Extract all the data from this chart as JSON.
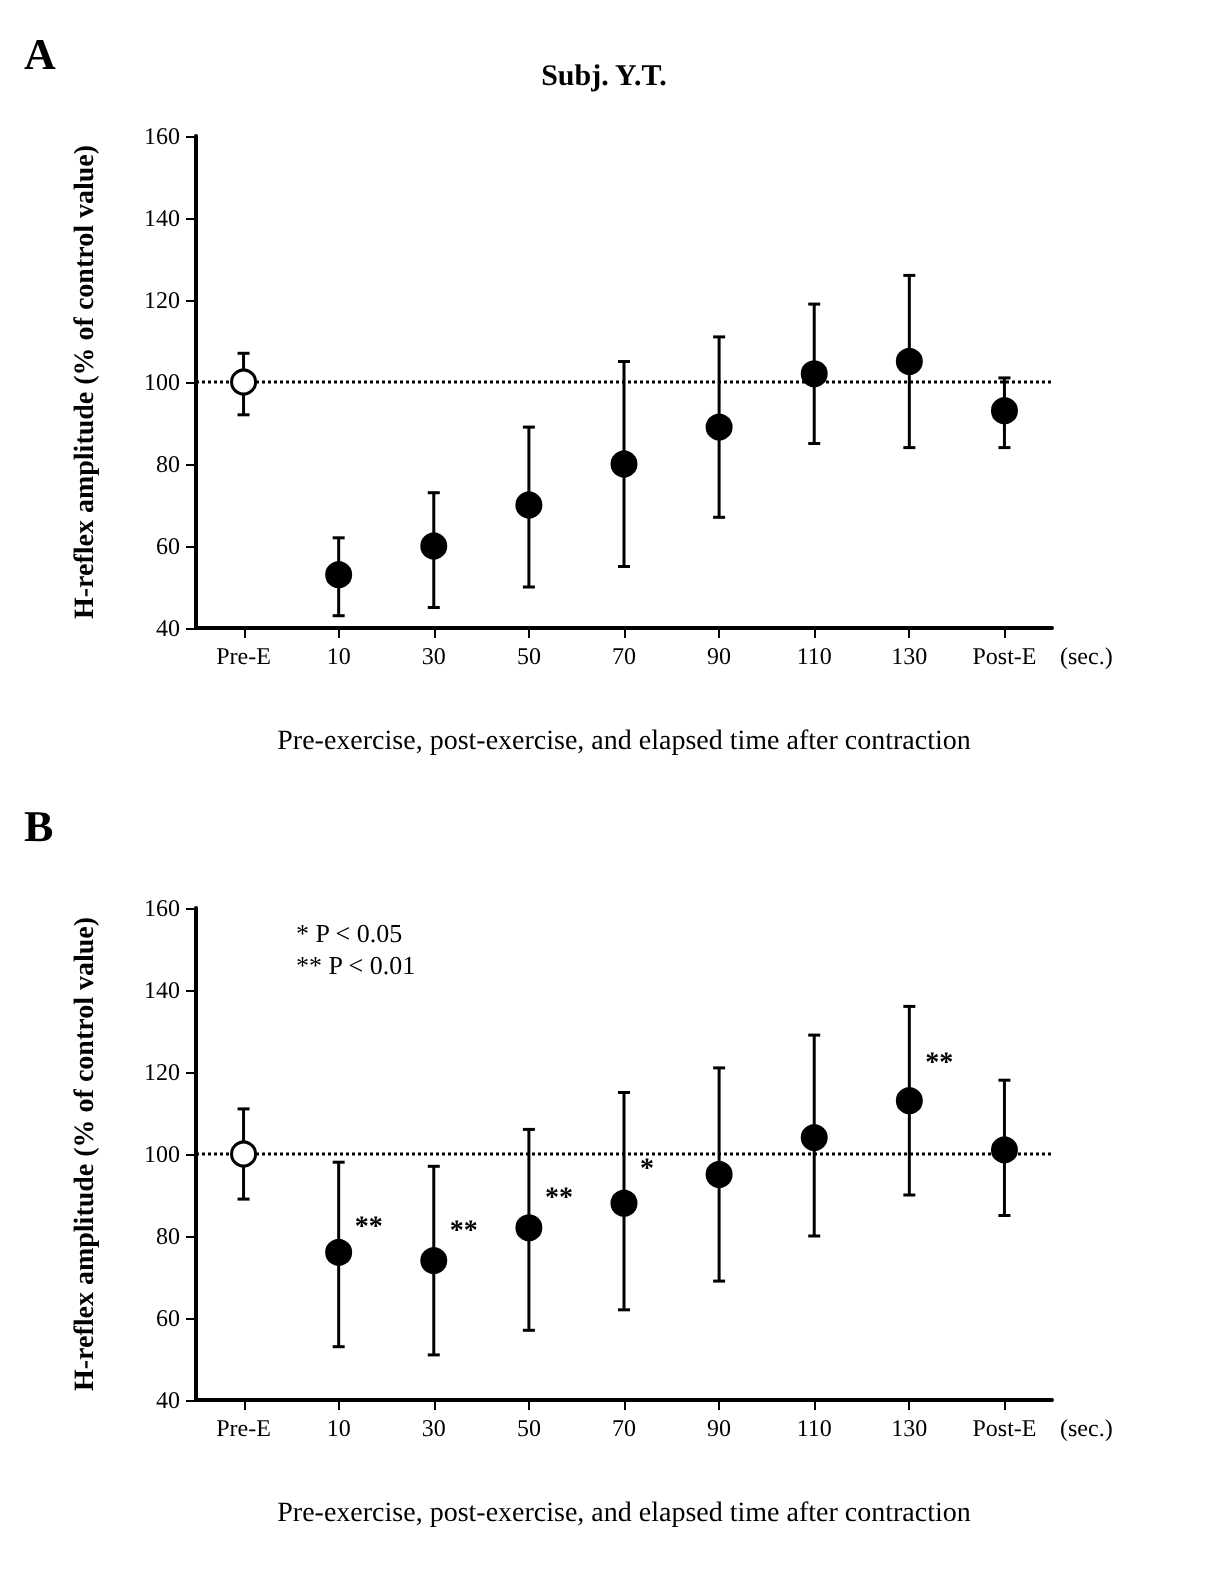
{
  "chart_data": [
    {
      "type": "scatter",
      "title": "Subj. Y.T.",
      "xlabel": "Pre-exercise, post-exercise, and elapsed time after contraction",
      "ylabel": "H-reflex amplitude (% of control value)",
      "categories": [
        "Pre-E",
        "10",
        "30",
        "50",
        "70",
        "90",
        "110",
        "130",
        "Post-E"
      ],
      "ylim": [
        40,
        160
      ],
      "yticks": [
        40,
        60,
        80,
        100,
        120,
        140,
        160
      ],
      "marker": "circle",
      "series": [
        {
          "color": "#ffffff",
          "x": [
            "Pre-E"
          ],
          "values": [
            100
          ],
          "errors": [
            [
              92,
              107
            ]
          ]
        },
        {
          "color": "#000000",
          "x": [
            "10",
            "30",
            "50",
            "70",
            "90",
            "110",
            "130",
            "Post-E"
          ],
          "values": [
            53,
            60,
            70,
            80,
            89,
            102,
            105,
            93
          ],
          "errors": [
            [
              43,
              62
            ],
            [
              45,
              73
            ],
            [
              50,
              89
            ],
            [
              55,
              105
            ],
            [
              67,
              111
            ],
            [
              85,
              119
            ],
            [
              84,
              126
            ],
            [
              84,
              101
            ]
          ]
        }
      ],
      "ref_lines": [
        {
          "axis": "y",
          "value": 100,
          "color": "#000000",
          "line_style": "dotted"
        }
      ],
      "annotations": [
        "A",
        "(sec.)"
      ]
    },
    {
      "type": "scatter",
      "xlabel": "Pre-exercise, post-exercise, and elapsed time after contraction",
      "ylabel": "H-reflex amplitude (% of control value)",
      "categories": [
        "Pre-E",
        "10",
        "30",
        "50",
        "70",
        "90",
        "110",
        "130",
        "Post-E"
      ],
      "ylim": [
        40,
        160
      ],
      "yticks": [
        40,
        60,
        80,
        100,
        120,
        140,
        160
      ],
      "marker": "circle",
      "series": [
        {
          "color": "#ffffff",
          "x": [
            "Pre-E"
          ],
          "values": [
            100
          ],
          "errors": [
            [
              89,
              111
            ]
          ]
        },
        {
          "color": "#000000",
          "x": [
            "10",
            "30",
            "50",
            "70",
            "90",
            "110",
            "130",
            "Post-E"
          ],
          "values": [
            76,
            74,
            82,
            88,
            95,
            104,
            113,
            101
          ],
          "errors": [
            [
              53,
              98
            ],
            [
              51,
              97
            ],
            [
              57,
              106
            ],
            [
              62,
              115
            ],
            [
              69,
              121
            ],
            [
              80,
              129
            ],
            [
              90,
              136
            ],
            [
              85,
              118
            ]
          ]
        }
      ],
      "ref_lines": [
        {
          "axis": "y",
          "value": 100,
          "color": "#000000",
          "line_style": "dotted"
        }
      ],
      "annotations": [
        "B",
        "* P < 0.05",
        "** P < 0.01",
        "(sec.)",
        {
          "text": "**",
          "x": "10",
          "y": 82
        },
        {
          "text": "**",
          "x": "30",
          "y": 81
        },
        {
          "text": "**",
          "x": "50",
          "y": 89
        },
        {
          "text": "*",
          "x": "70",
          "y": 96
        },
        {
          "text": "**",
          "x": "130",
          "y": 122
        }
      ]
    }
  ]
}
